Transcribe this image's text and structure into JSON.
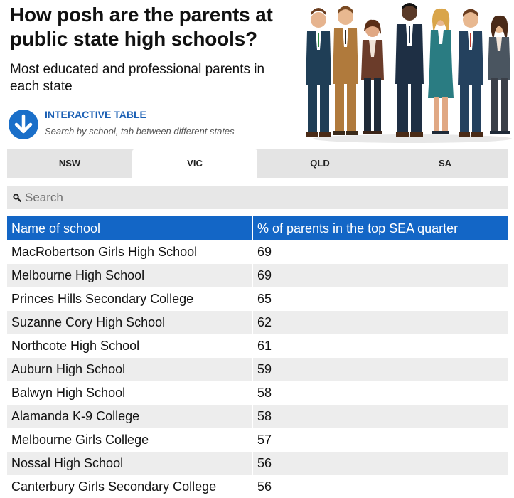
{
  "header": {
    "title": "How posh are the parents at public state high schools?",
    "subtitle": "Most educated and professional parents in each state",
    "cta_label": "INTERACTIVE TABLE",
    "cta_sub": "Search by school, tab between different states",
    "cta_icon": "arrow-down-circle-icon",
    "illustration": "group-of-parents-illustration"
  },
  "tabs": [
    {
      "label": "NSW",
      "active": false
    },
    {
      "label": "VIC",
      "active": true
    },
    {
      "label": "QLD",
      "active": false
    },
    {
      "label": "SA",
      "active": false
    }
  ],
  "search": {
    "placeholder": "Search",
    "value": "",
    "icon": "search-icon"
  },
  "table": {
    "columns": [
      "Name of school",
      "% of parents in the top SEA quarter"
    ],
    "rows": [
      {
        "school": "MacRobertson Girls High School",
        "pct": "69"
      },
      {
        "school": "Melbourne High School",
        "pct": "69"
      },
      {
        "school": "Princes Hills Secondary College",
        "pct": "65"
      },
      {
        "school": "Suzanne Cory High School",
        "pct": "62"
      },
      {
        "school": "Northcote High School",
        "pct": "61"
      },
      {
        "school": "Auburn High School",
        "pct": "59"
      },
      {
        "school": "Balwyn High School",
        "pct": "58"
      },
      {
        "school": "Alamanda K-9 College",
        "pct": "58"
      },
      {
        "school": "Melbourne Girls College",
        "pct": "57"
      },
      {
        "school": "Nossal High School",
        "pct": "56"
      },
      {
        "school": "Canterbury Girls Secondary College",
        "pct": "56"
      }
    ]
  },
  "colors": {
    "accent": "#1366c6",
    "cta_text": "#1a5fb4",
    "tab_bg": "#e4e4e4",
    "row_alt": "#ededed"
  }
}
